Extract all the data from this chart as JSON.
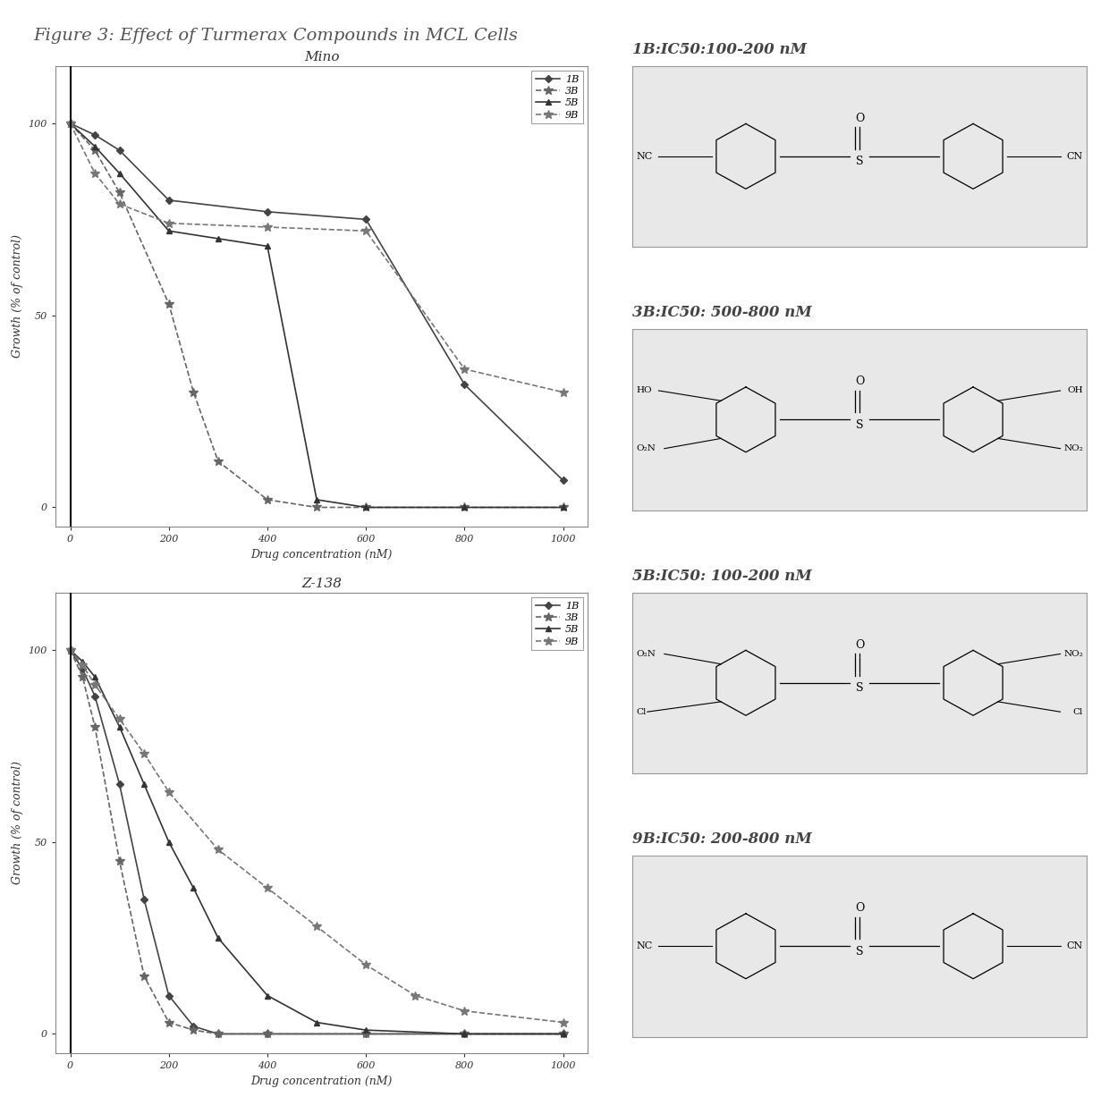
{
  "title": "Figure 3: Effect of Turmerax Compounds in MCL Cells",
  "title_fontsize": 14,
  "mino_title": "Mino",
  "z138_title": "Z-138",
  "xlabel": "Drug concentration (nM)",
  "ylabel": "Growth (% of control)",
  "x_ticks": [
    0,
    200,
    400,
    600,
    800,
    1000
  ],
  "y_ticks": [
    0,
    50,
    100
  ],
  "ylim": [
    -5,
    115
  ],
  "xlim": [
    -30,
    1050
  ],
  "compounds": [
    "1B",
    "3B",
    "5B",
    "9B"
  ],
  "mino": {
    "1B": {
      "x": [
        0,
        50,
        100,
        200,
        400,
        600,
        800,
        1000
      ],
      "y": [
        100,
        97,
        93,
        80,
        77,
        75,
        32,
        7
      ]
    },
    "3B": {
      "x": [
        0,
        50,
        100,
        200,
        250,
        300,
        400,
        500,
        600,
        800,
        1000
      ],
      "y": [
        100,
        93,
        82,
        53,
        30,
        12,
        2,
        0,
        0,
        0,
        0
      ]
    },
    "5B": {
      "x": [
        0,
        50,
        100,
        200,
        300,
        400,
        500,
        600,
        800,
        1000
      ],
      "y": [
        100,
        94,
        87,
        72,
        70,
        68,
        2,
        0,
        0,
        0
      ]
    },
    "9B": {
      "x": [
        0,
        50,
        100,
        200,
        400,
        600,
        800,
        1000
      ],
      "y": [
        100,
        87,
        79,
        74,
        73,
        72,
        36,
        30
      ]
    }
  },
  "z138": {
    "1B": {
      "x": [
        0,
        25,
        50,
        100,
        150,
        200,
        250,
        300,
        400,
        600,
        800,
        1000
      ],
      "y": [
        100,
        95,
        88,
        65,
        35,
        10,
        2,
        0,
        0,
        0,
        0,
        0
      ]
    },
    "3B": {
      "x": [
        0,
        25,
        50,
        100,
        150,
        200,
        250,
        300,
        400,
        600,
        800,
        1000
      ],
      "y": [
        100,
        93,
        80,
        45,
        15,
        3,
        1,
        0,
        0,
        0,
        0,
        0
      ]
    },
    "5B": {
      "x": [
        0,
        25,
        50,
        100,
        150,
        200,
        250,
        300,
        400,
        500,
        600,
        800,
        1000
      ],
      "y": [
        100,
        97,
        93,
        80,
        65,
        50,
        38,
        25,
        10,
        3,
        1,
        0,
        0
      ]
    },
    "9B": {
      "x": [
        0,
        25,
        50,
        100,
        150,
        200,
        300,
        400,
        500,
        600,
        700,
        800,
        1000
      ],
      "y": [
        100,
        96,
        91,
        82,
        73,
        63,
        48,
        38,
        28,
        18,
        10,
        6,
        3
      ]
    }
  },
  "line_styles": {
    "1B": {
      "color": "#444444",
      "linestyle": "-",
      "marker": "D",
      "markersize": 4,
      "markerfacecolor": "#444444"
    },
    "3B": {
      "color": "#666666",
      "linestyle": "--",
      "marker": "*",
      "markersize": 7,
      "markerfacecolor": "#666666"
    },
    "5B": {
      "color": "#333333",
      "linestyle": "-",
      "marker": "^",
      "markersize": 5,
      "markerfacecolor": "#333333"
    },
    "9B": {
      "color": "#777777",
      "linestyle": "--",
      "marker": "*",
      "markersize": 7,
      "markerfacecolor": "#777777"
    }
  },
  "structure_labels": [
    "1B:IC50:100-200 nM",
    "3B:IC50: 500-800 nM",
    "5B:IC50: 100-200 nM",
    "9B:IC50: 200-800 nM"
  ],
  "background_color": "#ffffff",
  "plot_facecolor": "#ffffff",
  "box_facecolor": "#e8e8e8"
}
